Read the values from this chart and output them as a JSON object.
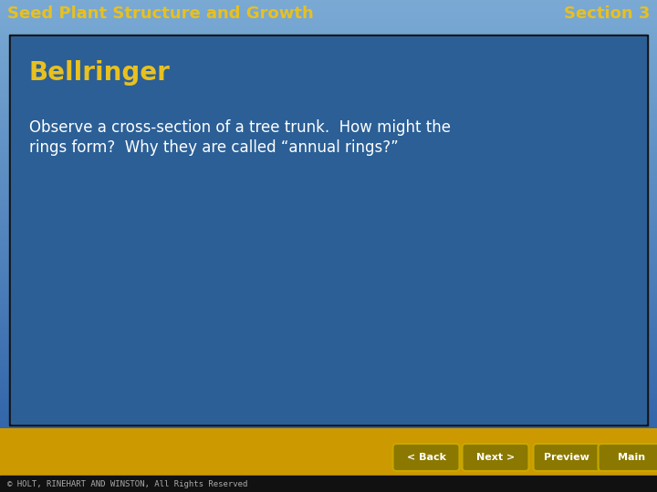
{
  "header_left": "Seed Plant Structure and Growth",
  "header_right": "Section 3",
  "header_color": "#E8C020",
  "slide_bg_color": "#2B5F96",
  "slide_border_color": "#333333",
  "title_text": "Bellringer",
  "title_color": "#E8C020",
  "body_text_line1": "Observe a cross-section of a tree trunk.  How might the",
  "body_text_line2": "rings form?  Why they are called “annual rings?”",
  "body_text_color": "#FFFFFF",
  "footer_text": "© HOLT, RINEHART AND WINSTON, All Rights Reserved",
  "button_labels": [
    "‹ Back",
    "Next ›",
    "Preview",
    "Main"
  ],
  "button_bg": "#8B7800",
  "button_border": "#C8A800",
  "sky_top": "#6699CC",
  "sky_bottom": "#4477AA",
  "ground_top": "#CC9900",
  "ground_bottom": "#AA7700"
}
